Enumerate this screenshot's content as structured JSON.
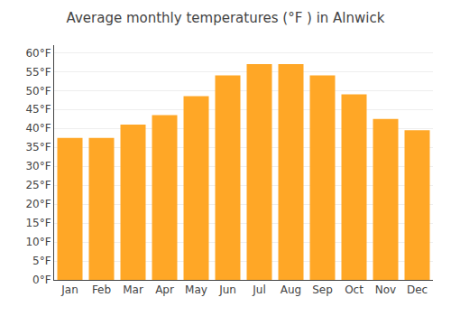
{
  "chart_data": {
    "type": "bar",
    "title": "Average monthly temperatures (°F ) in Alnwick",
    "categories": [
      "Jan",
      "Feb",
      "Mar",
      "Apr",
      "May",
      "Jun",
      "Jul",
      "Aug",
      "Sep",
      "Oct",
      "Nov",
      "Dec"
    ],
    "values": [
      37.5,
      37.5,
      41.0,
      43.5,
      48.5,
      54.0,
      57.0,
      57.0,
      54.0,
      49.0,
      42.5,
      39.5
    ],
    "color": "#FFA726",
    "ylim": [
      0,
      62
    ],
    "yticks": [
      {
        "value": 0,
        "label": "0°F"
      },
      {
        "value": 5,
        "label": "5°F"
      },
      {
        "value": 10,
        "label": "10°F"
      },
      {
        "value": 15,
        "label": "15°F"
      },
      {
        "value": 20,
        "label": "20°F"
      },
      {
        "value": 25,
        "label": "25°F"
      },
      {
        "value": 30,
        "label": "30°F"
      },
      {
        "value": 35,
        "label": "35°F"
      },
      {
        "value": 40,
        "label": "40°F"
      },
      {
        "value": 45,
        "label": "45°F"
      },
      {
        "value": 50,
        "label": "50°F"
      },
      {
        "value": 55,
        "label": "55°F"
      },
      {
        "value": 60,
        "label": "60°F"
      }
    ],
    "grid": true
  }
}
